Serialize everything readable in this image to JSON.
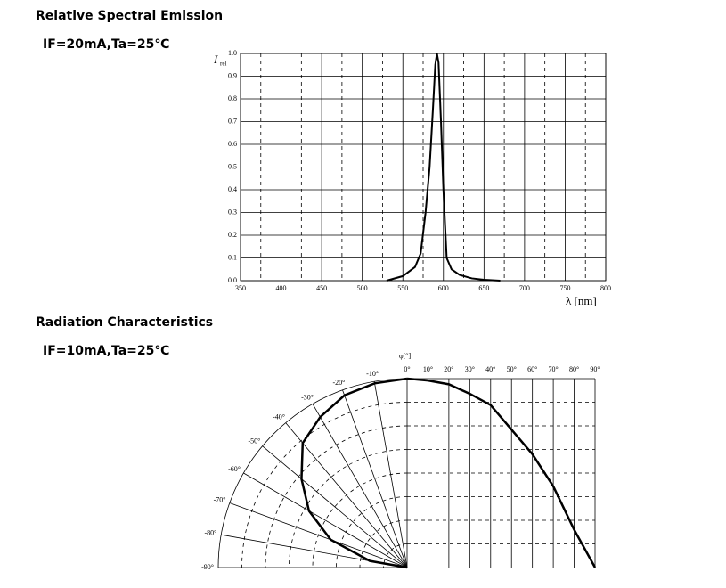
{
  "chart_data": [
    {
      "type": "line",
      "title": "Relative Spectral Emission",
      "subtitle": "IF=20mA,Ta=25℃",
      "xlabel": "λ [nm]",
      "ylabel": "I",
      "ylabel_sub": "rel",
      "color": "#000000",
      "x": [
        530,
        550,
        565,
        572,
        578,
        583,
        587,
        590,
        592,
        594,
        597,
        600,
        604,
        610,
        620,
        635,
        650,
        670
      ],
      "values": [
        0,
        0.02,
        0.06,
        0.12,
        0.3,
        0.5,
        0.75,
        0.95,
        1.0,
        0.96,
        0.7,
        0.4,
        0.1,
        0.05,
        0.025,
        0.01,
        0.004,
        0
      ],
      "xlim": [
        350,
        800
      ],
      "xticks": [
        350,
        400,
        450,
        500,
        550,
        600,
        650,
        700,
        750,
        800
      ],
      "ylim": [
        0,
        1
      ],
      "yticks": [
        {
          "value": 0,
          "label": "0.0"
        },
        0.1,
        0.2,
        0.3,
        0.4,
        0.5,
        0.6,
        0.7,
        0.8,
        0.9,
        {
          "value": 1,
          "label": "1.0"
        }
      ],
      "grid": true
    },
    {
      "type": "polar",
      "title": "Radiation Characteristics",
      "subtitle": "IF=10mA,Ta=25℃",
      "xlabel": "φ[°]",
      "color": "#000000",
      "x": [
        0,
        10,
        20,
        30,
        40,
        50,
        60,
        70,
        80,
        90
      ],
      "values": [
        1.0,
        0.99,
        0.97,
        0.92,
        0.86,
        0.73,
        0.6,
        0.43,
        0.2,
        0
      ],
      "xlim": [
        0,
        90
      ],
      "ylim": [
        0,
        1
      ],
      "xticks": [
        {
          "value": 0,
          "label": "0°"
        },
        {
          "value": 10,
          "label": "10°"
        },
        {
          "value": 20,
          "label": "20°"
        },
        {
          "value": 30,
          "label": "30°"
        },
        {
          "value": 40,
          "label": "40°"
        },
        {
          "value": 50,
          "label": "50°"
        },
        {
          "value": 60,
          "label": "60°"
        },
        {
          "value": 70,
          "label": "70°"
        },
        {
          "value": 80,
          "label": "80°"
        },
        {
          "value": 90,
          "label": "90°"
        }
      ],
      "angle_ticks": [
        {
          "value": -10,
          "label": "-10°"
        },
        {
          "value": -20,
          "label": "-20°"
        },
        {
          "value": -30,
          "label": "-30°"
        },
        {
          "value": -40,
          "label": "-40°"
        },
        {
          "value": -50,
          "label": "-50°"
        },
        {
          "value": -60,
          "label": "-60°"
        },
        {
          "value": -70,
          "label": "-70°"
        },
        {
          "value": -80,
          "label": "-80°"
        },
        {
          "value": -90,
          "label": "-90°"
        }
      ],
      "grid": true
    }
  ]
}
